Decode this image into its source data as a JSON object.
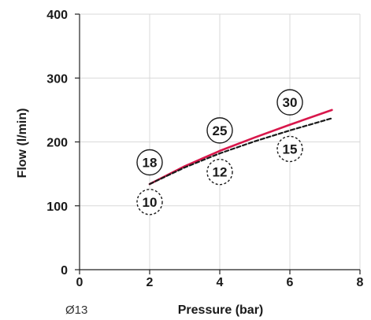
{
  "chart_data": {
    "type": "line",
    "xlabel": "Pressure (bar)",
    "ylabel": "Flow (l/min)",
    "corner_label": "Ø13",
    "xlim": [
      0,
      8
    ],
    "ylim": [
      0,
      400
    ],
    "x_ticks": [
      "0",
      "2",
      "4",
      "6",
      "8"
    ],
    "y_ticks": [
      "0",
      "100",
      "200",
      "300",
      "400"
    ],
    "grid": "vertical and horizontal",
    "series": [
      {
        "style": "solid",
        "color": "#d8174b",
        "x": [
          2,
          3,
          4,
          5,
          6,
          7.2
        ],
        "y": [
          134,
          162,
          186,
          207,
          227,
          250
        ]
      },
      {
        "style": "dashed",
        "color": "#1a1a1a",
        "x": [
          2,
          3,
          4,
          5,
          6,
          7.2
        ],
        "y": [
          134,
          160,
          182,
          201,
          218,
          237
        ]
      }
    ],
    "annotations": [
      {
        "text": "18",
        "x": 2,
        "y": 168,
        "style": "solid"
      },
      {
        "text": "10",
        "x": 2,
        "y": 106,
        "style": "dashed"
      },
      {
        "text": "25",
        "x": 4,
        "y": 218,
        "style": "solid"
      },
      {
        "text": "12",
        "x": 4,
        "y": 153,
        "style": "dashed"
      },
      {
        "text": "30",
        "x": 6,
        "y": 262,
        "style": "solid"
      },
      {
        "text": "15",
        "x": 6,
        "y": 189,
        "style": "dashed"
      }
    ]
  }
}
